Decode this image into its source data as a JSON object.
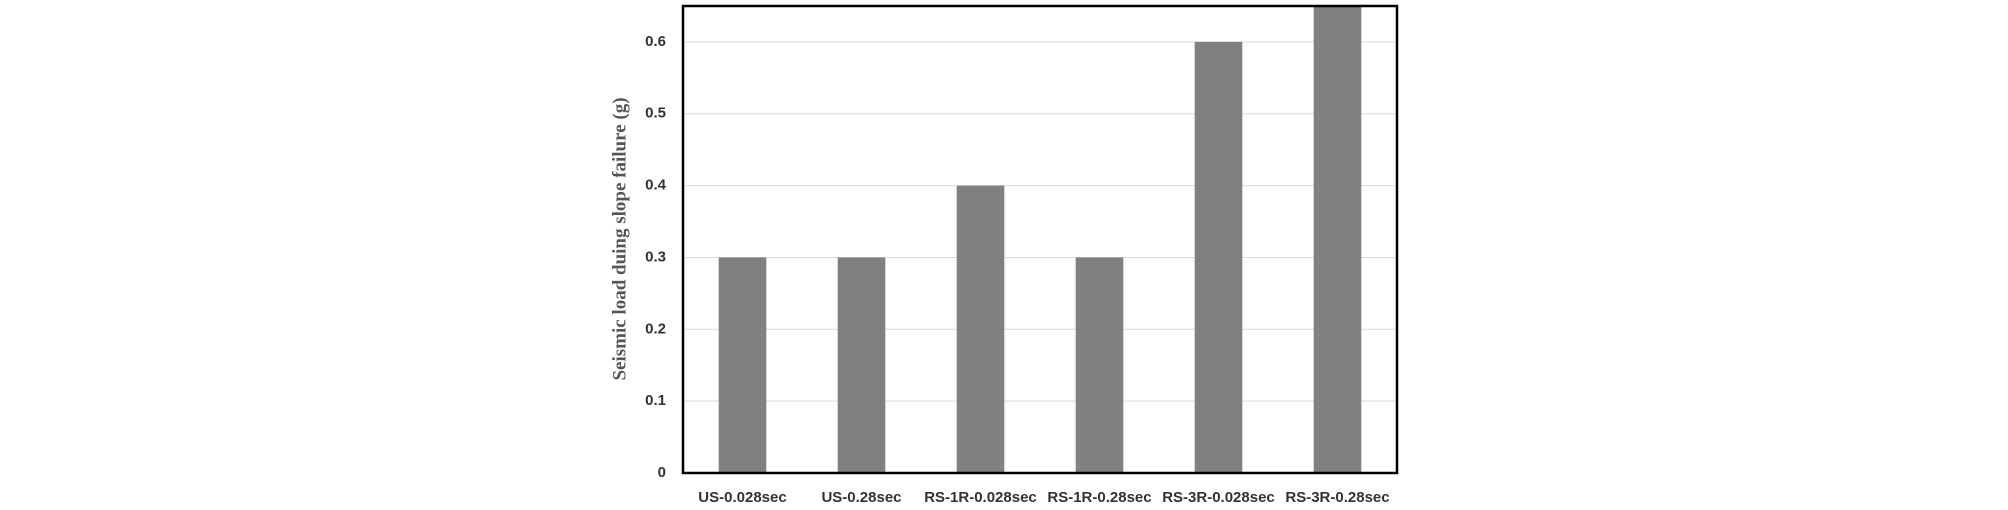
{
  "chart_data": {
    "type": "bar",
    "y_label": "Seismic load duing slope failure (g)",
    "categories": [
      "US-0.028sec",
      "US-0.28sec",
      "RS-1R-0.028sec",
      "RS-1R-0.28sec",
      "RS-3R-0.028sec",
      "RS-3R-0.28sec"
    ],
    "values": [
      0.3,
      0.3,
      0.4,
      0.3,
      0.6,
      0.65
    ],
    "color": "#808080",
    "ylim": [
      0,
      0.65
    ],
    "yticks": [
      0,
      0.1,
      0.2,
      0.3,
      0.4,
      0.5,
      0.6
    ],
    "grid": true
  }
}
